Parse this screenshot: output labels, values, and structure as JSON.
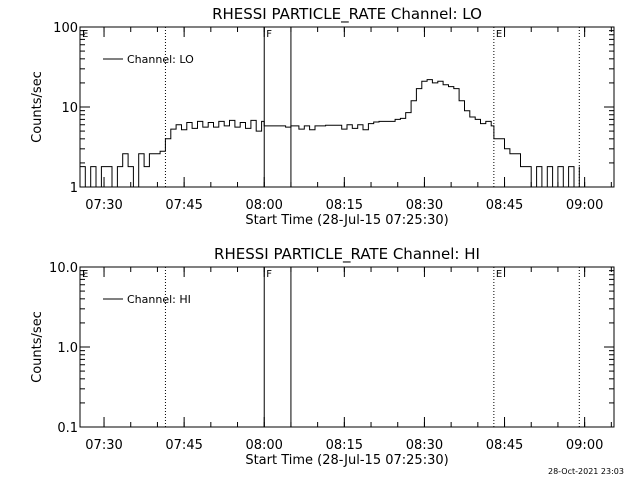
{
  "footer": {
    "timestamp": "28-Oct-2021 23:03"
  },
  "chart_data": [
    {
      "type": "line",
      "title": "RHESSI PARTICLE_RATE Channel: LO",
      "xlabel": "Start Time (28-Jul-15 07:25:30)",
      "ylabel": "Counts/sec",
      "yscale": "log",
      "ylim": [
        1,
        100
      ],
      "yticks": [
        "1",
        "10",
        "100"
      ],
      "xlim": [
        "07:25:30",
        "09:05:30"
      ],
      "xticks": [
        "07:30",
        "07:45",
        "08:00",
        "08:15",
        "08:30",
        "08:45",
        "09:00"
      ],
      "legend": {
        "placement": "top-left",
        "label": "Channel: LO"
      },
      "annotations": [
        {
          "label": "E",
          "time": "07:25:30",
          "style": "none"
        },
        {
          "label": "",
          "time": "07:41:30",
          "style": "dotted"
        },
        {
          "label": "F",
          "time": "08:00:00",
          "style": "solid"
        },
        {
          "label": "",
          "time": "08:05:00",
          "style": "solid"
        },
        {
          "label": "E",
          "time": "08:43:00",
          "style": "dotted"
        },
        {
          "label": "",
          "time": "08:59:00",
          "style": "dotted"
        }
      ],
      "series": [
        {
          "name": "Channel: LO",
          "points": [
            [
              "07:25:30",
              1.8
            ],
            [
              "07:26:30",
              1.0
            ],
            [
              "07:27:30",
              1.8
            ],
            [
              "07:28:30",
              1.0
            ],
            [
              "07:29:30",
              1.8
            ],
            [
              "07:30:30",
              1.8
            ],
            [
              "07:31:30",
              1.0
            ],
            [
              "07:32:30",
              1.8
            ],
            [
              "07:33:30",
              2.6
            ],
            [
              "07:34:30",
              1.8
            ],
            [
              "07:35:30",
              1.0
            ],
            [
              "07:36:30",
              2.6
            ],
            [
              "07:37:30",
              1.8
            ],
            [
              "07:38:30",
              2.6
            ],
            [
              "07:39:30",
              2.6
            ],
            [
              "07:40:30",
              2.8
            ],
            [
              "07:41:30",
              4.0
            ],
            [
              "07:42:30",
              5.3
            ],
            [
              "07:43:30",
              6.0
            ],
            [
              "07:44:30",
              5.2
            ],
            [
              "07:45:30",
              6.4
            ],
            [
              "07:46:30",
              5.4
            ],
            [
              "07:47:30",
              6.6
            ],
            [
              "07:48:30",
              5.6
            ],
            [
              "07:49:30",
              6.4
            ],
            [
              "07:50:30",
              5.6
            ],
            [
              "07:51:30",
              6.6
            ],
            [
              "07:52:30",
              5.8
            ],
            [
              "07:53:30",
              6.8
            ],
            [
              "07:54:30",
              5.6
            ],
            [
              "07:55:30",
              6.4
            ],
            [
              "07:56:30",
              5.4
            ],
            [
              "07:57:30",
              6.8
            ],
            [
              "07:58:30",
              5.0
            ],
            [
              "07:59:30",
              6.6
            ],
            [
              "08:00:00",
              5.8
            ],
            [
              "08:01:00",
              5.8
            ],
            [
              "08:02:00",
              5.8
            ],
            [
              "08:03:00",
              5.8
            ],
            [
              "08:04:00",
              5.6
            ],
            [
              "08:05:00",
              5.8
            ],
            [
              "08:06:30",
              5.3
            ],
            [
              "08:07:30",
              5.8
            ],
            [
              "08:08:30",
              5.2
            ],
            [
              "08:09:30",
              5.8
            ],
            [
              "08:10:30",
              5.8
            ],
            [
              "08:11:30",
              5.9
            ],
            [
              "08:12:30",
              5.9
            ],
            [
              "08:13:30",
              5.9
            ],
            [
              "08:14:30",
              5.3
            ],
            [
              "08:15:30",
              6.0
            ],
            [
              "08:16:30",
              5.4
            ],
            [
              "08:17:30",
              6.0
            ],
            [
              "08:18:30",
              5.2
            ],
            [
              "08:19:30",
              6.2
            ],
            [
              "08:20:30",
              6.5
            ],
            [
              "08:21:30",
              6.6
            ],
            [
              "08:22:30",
              6.6
            ],
            [
              "08:23:30",
              6.6
            ],
            [
              "08:24:30",
              7.0
            ],
            [
              "08:25:30",
              7.2
            ],
            [
              "08:26:30",
              8.5
            ],
            [
              "08:27:30",
              12.0
            ],
            [
              "08:28:30",
              17.0
            ],
            [
              "08:29:30",
              21.0
            ],
            [
              "08:30:30",
              22.0
            ],
            [
              "08:31:30",
              20.0
            ],
            [
              "08:32:30",
              21.0
            ],
            [
              "08:33:30",
              19.0
            ],
            [
              "08:34:30",
              18.0
            ],
            [
              "08:35:30",
              17.0
            ],
            [
              "08:36:30",
              12.0
            ],
            [
              "08:37:30",
              9.0
            ],
            [
              "08:38:30",
              7.5
            ],
            [
              "08:39:30",
              7.0
            ],
            [
              "08:40:30",
              6.2
            ],
            [
              "08:41:30",
              6.6
            ],
            [
              "08:42:30",
              5.8
            ],
            [
              "08:43:00",
              4.0
            ],
            [
              "08:44:00",
              4.0
            ],
            [
              "08:45:00",
              3.0
            ],
            [
              "08:46:00",
              2.6
            ],
            [
              "08:47:00",
              2.6
            ],
            [
              "08:48:00",
              1.8
            ],
            [
              "08:49:00",
              1.8
            ],
            [
              "08:50:00",
              1.0
            ],
            [
              "08:51:00",
              1.8
            ],
            [
              "08:52:00",
              1.0
            ],
            [
              "08:53:00",
              1.8
            ],
            [
              "08:54:00",
              1.0
            ],
            [
              "08:55:00",
              1.8
            ],
            [
              "08:56:00",
              1.0
            ],
            [
              "08:57:00",
              1.8
            ],
            [
              "08:58:00",
              1.0
            ],
            [
              "08:59:00",
              1.8
            ]
          ]
        }
      ]
    },
    {
      "type": "line",
      "title": "RHESSI PARTICLE_RATE Channel: HI",
      "xlabel": "Start Time (28-Jul-15 07:25:30)",
      "ylabel": "Counts/sec",
      "yscale": "log",
      "ylim": [
        0.1,
        10
      ],
      "yticks": [
        "0.1",
        "1.0",
        "10.0"
      ],
      "xlim": [
        "07:25:30",
        "09:05:30"
      ],
      "xticks": [
        "07:30",
        "07:45",
        "08:00",
        "08:15",
        "08:30",
        "08:45",
        "09:00"
      ],
      "legend": {
        "placement": "top-left",
        "label": "Channel: HI"
      },
      "annotations": [
        {
          "label": "E",
          "time": "07:25:30",
          "style": "none"
        },
        {
          "label": "",
          "time": "07:41:30",
          "style": "dotted"
        },
        {
          "label": "F",
          "time": "08:00:00",
          "style": "solid"
        },
        {
          "label": "",
          "time": "08:05:00",
          "style": "solid"
        },
        {
          "label": "E",
          "time": "08:43:00",
          "style": "dotted"
        },
        {
          "label": "",
          "time": "08:59:00",
          "style": "dotted"
        }
      ],
      "series": [
        {
          "name": "Channel: HI",
          "points": []
        }
      ]
    }
  ]
}
